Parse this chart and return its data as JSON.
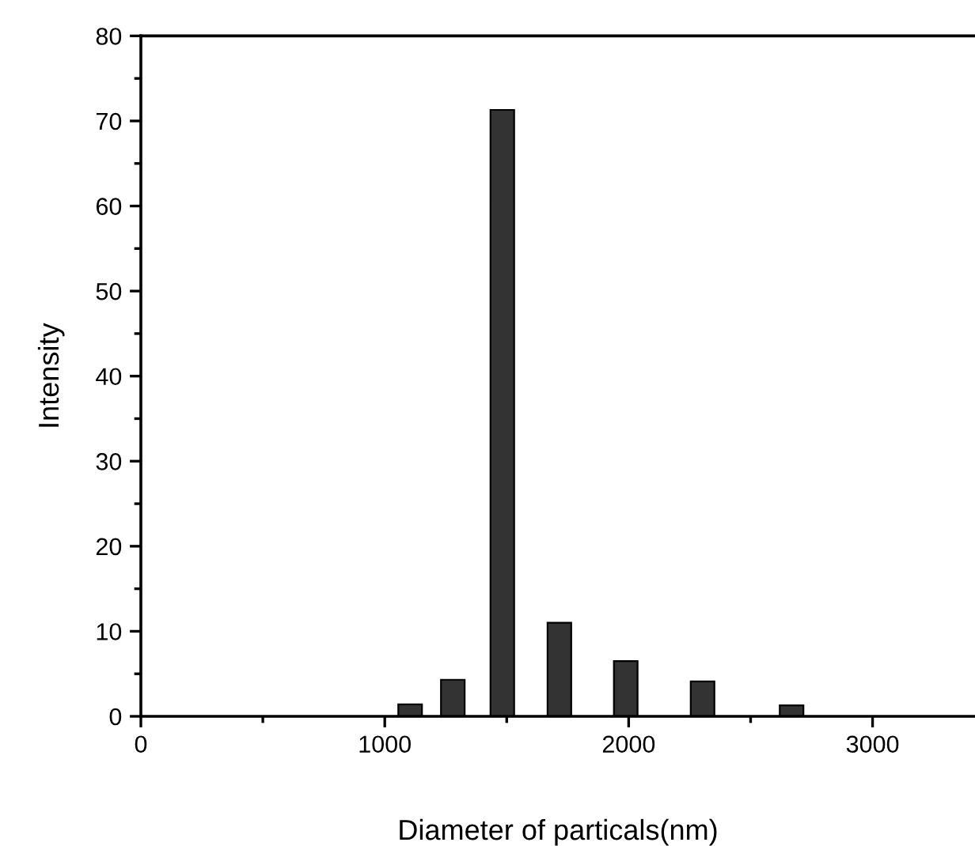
{
  "chart_data": {
    "type": "bar",
    "xlabel": "Diameter of particals(nm)",
    "ylabel": "Intensity",
    "x": [
      1104,
      1279,
      1482,
      1716,
      1988,
      2303,
      2668
    ],
    "values": [
      1.4,
      4.3,
      71.3,
      11.0,
      6.5,
      4.1,
      1.3
    ],
    "color": "#333333",
    "xlim": [
      0,
      3420
    ],
    "xticks": [
      0,
      1000,
      2000,
      3000
    ],
    "ylim": [
      0,
      80
    ],
    "yticks": [
      0,
      10,
      20,
      30,
      40,
      50,
      60,
      70,
      80
    ],
    "grid": false
  }
}
